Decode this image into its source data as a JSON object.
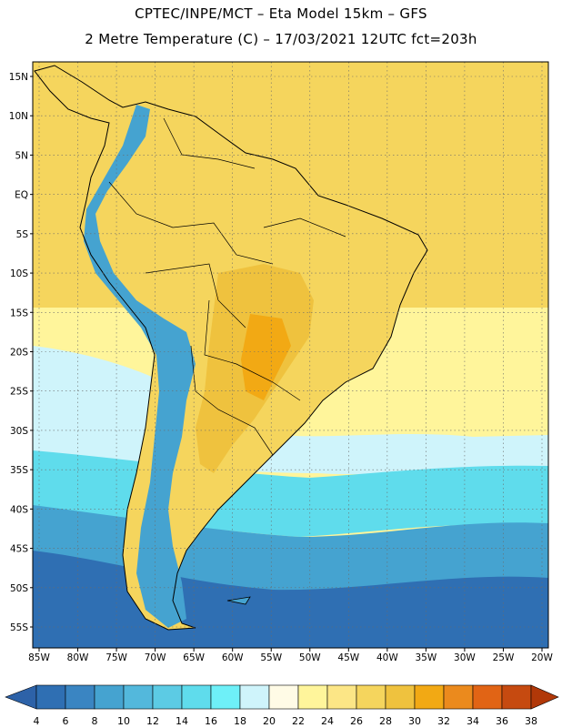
{
  "title_line1": "CPTEC/INPE/MCT –  Eta Model 15km – GFS",
  "title_line2": "2 Metre Temperature (C) – 17/03/2021 12UTC fct=203h",
  "lat_ticks": [
    {
      "label": "15N",
      "lat": 15
    },
    {
      "label": "10N",
      "lat": 10
    },
    {
      "label": "5N",
      "lat": 5
    },
    {
      "label": "EQ",
      "lat": 0
    },
    {
      "label": "5S",
      "lat": -5
    },
    {
      "label": "10S",
      "lat": -10
    },
    {
      "label": "15S",
      "lat": -15
    },
    {
      "label": "20S",
      "lat": -20
    },
    {
      "label": "25S",
      "lat": -25
    },
    {
      "label": "30S",
      "lat": -30
    },
    {
      "label": "35S",
      "lat": -35
    },
    {
      "label": "40S",
      "lat": -40
    },
    {
      "label": "45S",
      "lat": -45
    },
    {
      "label": "50S",
      "lat": -50
    },
    {
      "label": "55S",
      "lat": -55
    }
  ],
  "lon_ticks": [
    {
      "label": "85W",
      "lon": -85
    },
    {
      "label": "80W",
      "lon": -80
    },
    {
      "label": "75W",
      "lon": -75
    },
    {
      "label": "70W",
      "lon": -70
    },
    {
      "label": "65W",
      "lon": -65
    },
    {
      "label": "60W",
      "lon": -60
    },
    {
      "label": "55W",
      "lon": -55
    },
    {
      "label": "50W",
      "lon": -50
    },
    {
      "label": "45W",
      "lon": -45
    },
    {
      "label": "40W",
      "lon": -40
    },
    {
      "label": "35W",
      "lon": -35
    },
    {
      "label": "30W",
      "lon": -30
    },
    {
      "label": "25W",
      "lon": -25
    },
    {
      "label": "20W",
      "lon": -20
    }
  ],
  "colorbar": {
    "labels": [
      "4",
      "6",
      "8",
      "10",
      "12",
      "14",
      "16",
      "18",
      "20",
      "22",
      "24",
      "26",
      "28",
      "30",
      "32",
      "34",
      "36",
      "38"
    ],
    "colors": [
      "#2f6fb3",
      "#3a85c2",
      "#45a3d0",
      "#53b8dc",
      "#5ccbe4",
      "#5fdcec",
      "#6ef0f8",
      "#cff4fb",
      "#fffbe6",
      "#fff59b",
      "#fce686",
      "#f5d55d",
      "#efc23e",
      "#f2a914",
      "#eb8a1d",
      "#e16415",
      "#c64a10"
    ],
    "low_color": "#2d62a8",
    "high_color": "#b13808"
  },
  "colors": {
    "ocean_south_deep": "#2f6fb3",
    "ocean_mid": "#45a3d0",
    "ocean_cyan": "#5fdcec",
    "ocean_light": "#cff4fb",
    "tropics_ocean": "#f5d55d",
    "subtropics_ocean": "#fff59b",
    "land_main": "#f5d55d",
    "land_hot": "#efc23e",
    "land_hottest": "#f2a914",
    "andes_cold": "#45a3d0"
  }
}
